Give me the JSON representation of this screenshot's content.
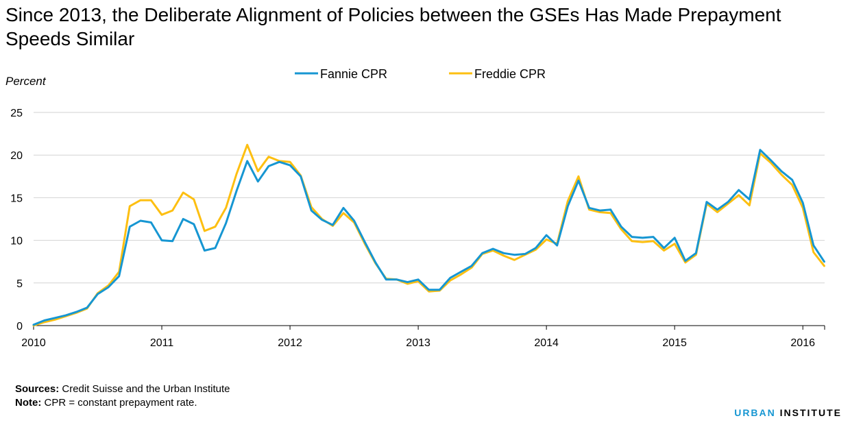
{
  "title": "Since 2013, the Deliberate Alignment of Policies between the GSEs Has Made Prepayment Speeds Similar",
  "footer": {
    "sources_label": "Sources:",
    "sources_text": "Credit Suisse and the Urban Institute",
    "note_label": "Note:",
    "note_text": "CPR = constant prepayment rate."
  },
  "logo": {
    "word1": "URBAN",
    "word2": "INSTITUTE"
  },
  "chart_data": {
    "type": "line",
    "title": "Since 2013, the Deliberate Alignment of Policies between the GSEs Has Made Prepayment Speeds Similar",
    "ylabel": "Percent",
    "xlabel": "",
    "ylim": [
      0,
      25
    ],
    "yticks": [
      0,
      5,
      10,
      15,
      20,
      25
    ],
    "xlim": [
      2010,
      2016.17
    ],
    "xticks": [
      "2010",
      "2011",
      "2012",
      "2013",
      "2014",
      "2015",
      "2016"
    ],
    "grid": true,
    "legend_position": "top-center",
    "x_start": "2010-01",
    "x_frequency": "monthly",
    "series": [
      {
        "name": "Fannie CPR",
        "color": "#1696d2",
        "values": [
          0.1,
          0.6,
          0.9,
          1.2,
          1.6,
          2.1,
          3.7,
          4.5,
          5.8,
          11.6,
          12.3,
          12.1,
          10.0,
          9.9,
          12.5,
          11.9,
          8.8,
          9.1,
          12.0,
          15.8,
          19.3,
          16.9,
          18.7,
          19.2,
          18.8,
          17.5,
          13.5,
          12.4,
          11.8,
          13.8,
          12.3,
          9.8,
          7.4,
          5.4,
          5.4,
          5.1,
          5.4,
          4.2,
          4.2,
          5.6,
          6.3,
          7.0,
          8.5,
          9.0,
          8.5,
          8.3,
          8.4,
          9.1,
          10.6,
          9.4,
          14.0,
          17.0,
          13.8,
          13.5,
          13.6,
          11.6,
          10.4,
          10.3,
          10.4,
          9.1,
          10.3,
          7.6,
          8.5,
          14.5,
          13.6,
          14.5,
          15.9,
          14.8,
          20.6,
          19.4,
          18.1,
          17.1,
          14.4,
          9.4,
          7.5
        ],
        "values_note": "monthly from Jan 2010"
      },
      {
        "name": "Freddie CPR",
        "color": "#fdbf11",
        "values": [
          0.0,
          0.4,
          0.7,
          1.1,
          1.5,
          2.0,
          3.8,
          4.7,
          6.3,
          14.0,
          14.7,
          14.7,
          13.0,
          13.5,
          15.6,
          14.8,
          11.1,
          11.6,
          13.8,
          17.8,
          21.2,
          18.1,
          19.8,
          19.3,
          19.2,
          17.6,
          13.9,
          12.5,
          11.7,
          13.2,
          12.1,
          9.6,
          7.3,
          5.5,
          5.4,
          4.9,
          5.2,
          4.0,
          4.1,
          5.3,
          6.0,
          6.8,
          8.4,
          8.8,
          8.2,
          7.7,
          8.3,
          8.9,
          10.1,
          9.6,
          14.6,
          17.5,
          13.6,
          13.3,
          13.2,
          11.3,
          9.9,
          9.8,
          9.9,
          8.8,
          9.6,
          7.4,
          8.3,
          14.3,
          13.3,
          14.3,
          15.3,
          14.1,
          20.2,
          19.1,
          17.7,
          16.5,
          13.8,
          8.6,
          7.0
        ]
      }
    ]
  }
}
